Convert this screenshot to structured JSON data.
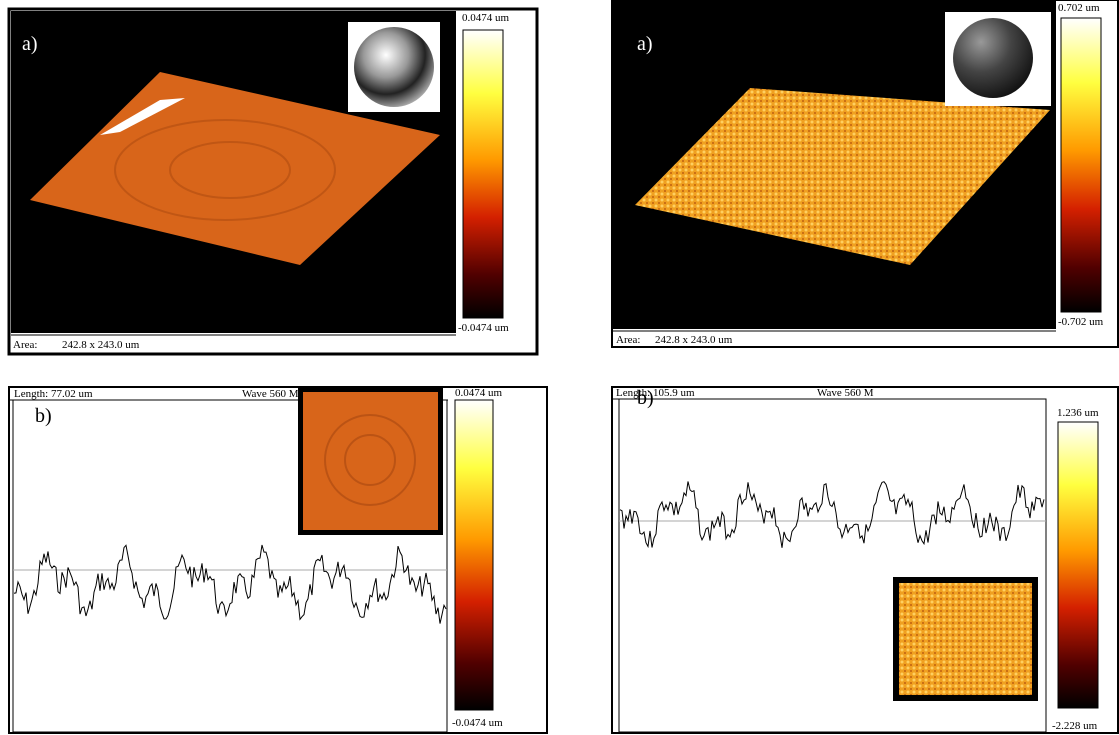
{
  "panels": [
    {
      "label": "a)",
      "scale_top": "0.0474 um",
      "scale_bottom": "-0.0474 um",
      "area_label": "Area:",
      "area": "242.8 x 243.0 um"
    },
    {
      "label": "a)",
      "scale_top": "0.702 um",
      "scale_bottom": "-0.702 um",
      "area_label": "Area:",
      "area": "242.8 x 243.0 um"
    },
    {
      "label": "b)",
      "length": "Length: 77.02 um",
      "wave": "Wave 560 M",
      "scale_top": "0.0474 um",
      "scale_bottom": "-0.0474 um"
    },
    {
      "label": "b)",
      "length": "Length: 105.9 um",
      "wave": "Wave 560 M",
      "scale_top": "1.236 um",
      "scale_bottom": "-2.228 um"
    }
  ]
}
